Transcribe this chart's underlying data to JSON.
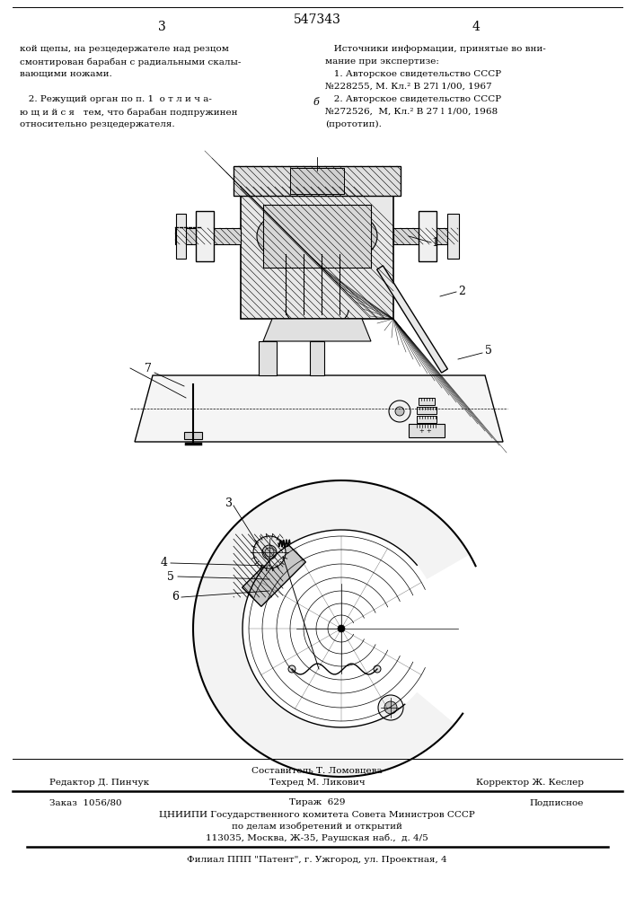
{
  "page_number": "547343",
  "page_left": "3",
  "page_right": "4",
  "background_color": "#ffffff",
  "text_color": "#000000",
  "left_col_lines": [
    "кой щепы, на резцедержателе над резцом",
    "смонтирован барабан с радиальными скалы-",
    "вающими ножами.",
    "",
    "   2. Режущий орган по п. 1  о т л и ч а-",
    "ю щ и й с я   тем, что барабан подпружинен",
    "относительно резцедержателя."
  ],
  "right_col_lines": [
    "   Источники информации, принятые во вни-",
    "мание при экспертизе:",
    "   1. Авторское свидетельство СССР",
    "№228255, М. Кл.² В 27l 1/00, 1967",
    "   2. Авторское свидетельство СССР",
    "№272526,  М, Кл.² В 27 l 1/00, 1968",
    "(прототип)."
  ],
  "footer_compose": "Составитель Т. Ломовцева",
  "footer_editor": "Редактор Д. Пинчук",
  "footer_tech": "Техред М. Ликович",
  "footer_corrector": "Корректор Ж. Кеслер",
  "footer_order": "Заказ  1056/80",
  "footer_tirazh": "Тираж  629",
  "footer_podp": "Подписное",
  "footer_org": "ЦНИИПИ Государственного комитета Совета Министров СССР",
  "footer_dept": "по делам изобретений и открытий",
  "footer_addr": "113035, Москва, Ж-35, Раушская наб.,  д. 4/5",
  "footer_patent": "Филиал ППП \"Патент\", г. Ужгород, ул. Проектная, 4"
}
